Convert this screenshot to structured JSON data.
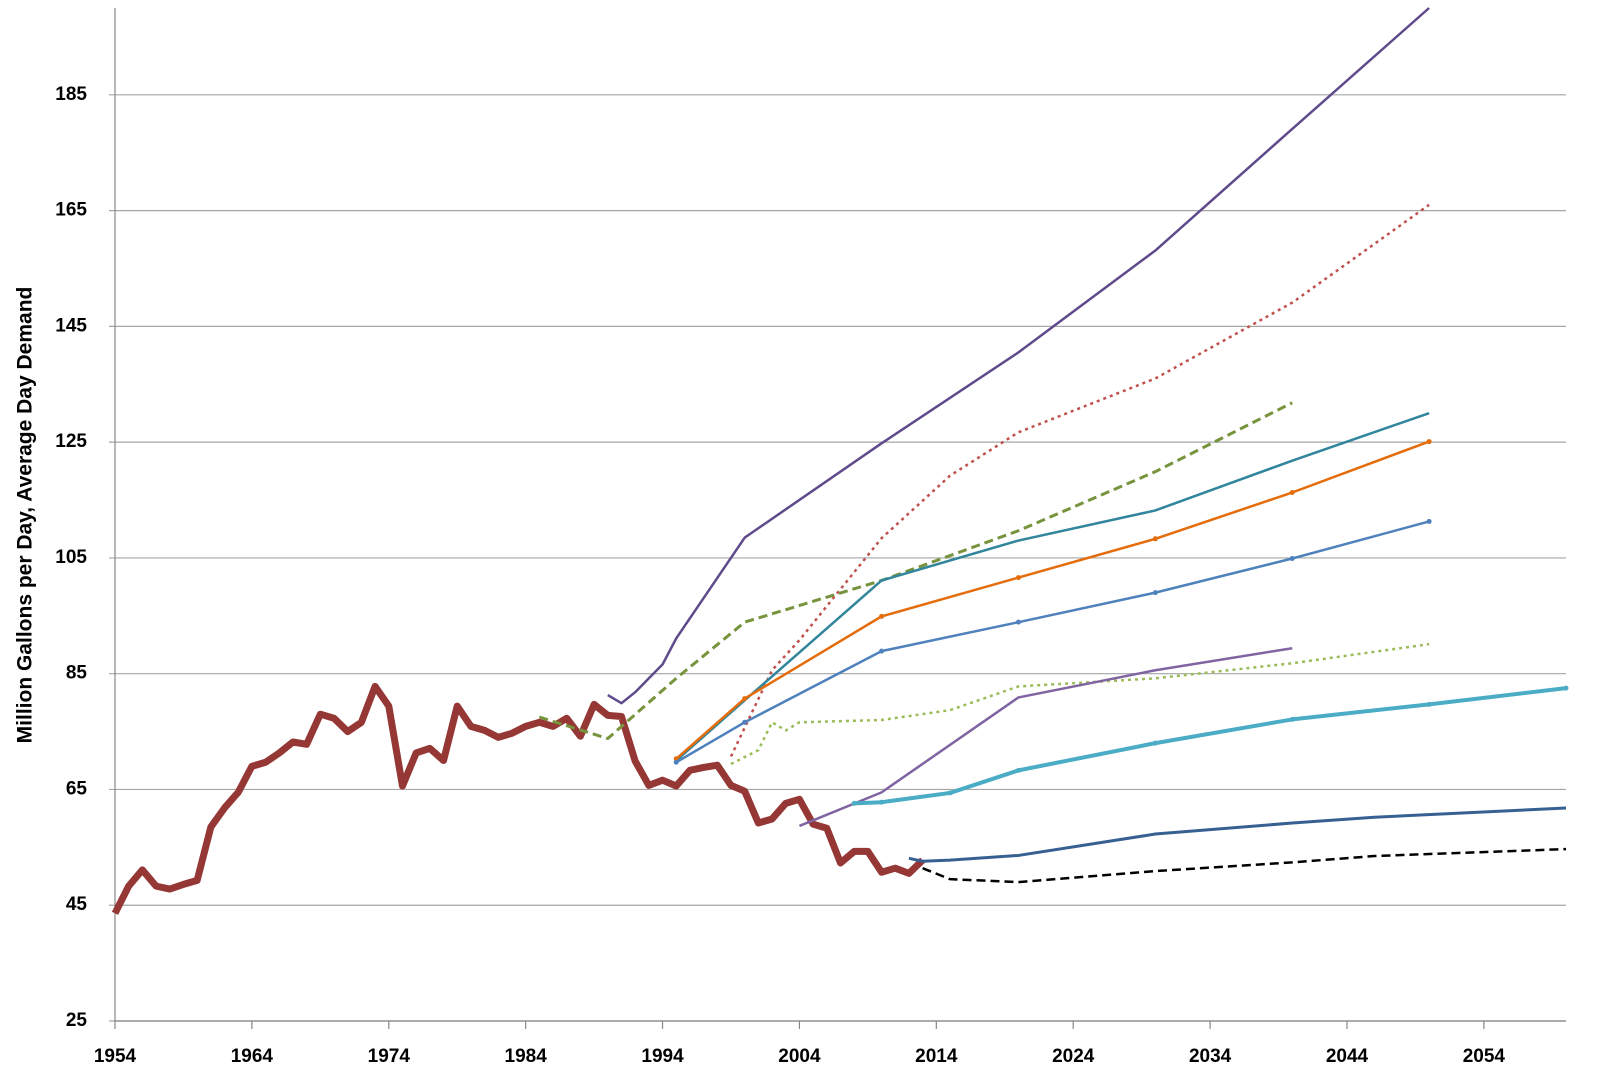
{
  "chart_data": {
    "type": "line",
    "y_label": "Million Gallons per Day, Average Day Demand",
    "xlim": [
      1954,
      2060
    ],
    "xticks": [
      1954,
      1964,
      1974,
      1984,
      1994,
      2004,
      2014,
      2024,
      2034,
      2044,
      2054
    ],
    "ylim": [
      25,
      200
    ],
    "yticks": [
      25,
      45,
      65,
      85,
      105,
      125,
      145,
      165,
      185
    ],
    "grid": true,
    "series": [
      {
        "color": "#953735",
        "width": 7,
        "x": [
          1954,
          1955,
          1956,
          1957,
          1958,
          1959,
          1960,
          1961,
          1962,
          1963,
          1964,
          1965,
          1966,
          1967,
          1968,
          1969,
          1970,
          1971,
          1972,
          1973,
          1974,
          1975,
          1976,
          1977,
          1978,
          1979,
          1980,
          1981,
          1982,
          1983,
          1984,
          1985,
          1986,
          1987,
          1988,
          1989,
          1990,
          1991,
          1992,
          1993,
          1994,
          1995,
          1996,
          1997,
          1998,
          1999,
          2000,
          2001,
          2002,
          2003,
          2004,
          2005,
          2006,
          2007,
          2008,
          2009,
          2010,
          2011,
          2012,
          2013
        ],
        "values": [
          43.6,
          48.3,
          51.1,
          48.3,
          47.8,
          48.6,
          49.3,
          58.5,
          61.8,
          64.5,
          69,
          69.7,
          71.3,
          73.2,
          72.8,
          78,
          77.3,
          75,
          76.6,
          82.8,
          79.4,
          65.6,
          71.3,
          72.1,
          70,
          79.4,
          75.9,
          75.2,
          74,
          74.7,
          75.9,
          76.6,
          75.9,
          77.3,
          74.2,
          79.7,
          77.8,
          77.6,
          69.9,
          65.7,
          66.6,
          65.6,
          68.3,
          68.8,
          69.2,
          65.7,
          64.7,
          59.2,
          59.9,
          62.6,
          63.3,
          59,
          58.3,
          52.3,
          54.3,
          54.3,
          50.7,
          51.4,
          50.5,
          52.8
        ]
      },
      {
        "color": "#5f4a8b",
        "width": 2.5,
        "x": [
          1990,
          1991,
          1992,
          1994,
          1995,
          2000,
          2010,
          2020,
          2030,
          2040,
          2050
        ],
        "values": [
          81.3,
          79.9,
          81.8,
          86.6,
          91.1,
          108.5,
          124.8,
          140.5,
          158.1,
          179.1,
          200
        ]
      },
      {
        "color": "#c0504d",
        "width": 2.5,
        "dash": "dotted",
        "x": [
          1999,
          2002,
          2004,
          2010,
          2015,
          2020,
          2030,
          2040,
          2050
        ],
        "values": [
          70.7,
          85.6,
          90.8,
          108.4,
          119.2,
          126.7,
          136,
          149.1,
          166
        ]
      },
      {
        "color": "#77933c",
        "width": 3,
        "dash": "dashed",
        "x": [
          1985,
          1990,
          1995,
          2000,
          2010,
          2020,
          2030,
          2040
        ],
        "values": [
          77.5,
          73.8,
          84.2,
          93.9,
          101.1,
          109.7,
          119.9,
          131.8
        ]
      },
      {
        "color": "#31859c",
        "width": 2.5,
        "x": [
          1995,
          2000,
          2010,
          2020,
          2030,
          2040,
          2050
        ],
        "values": [
          70,
          80.4,
          101.1,
          108,
          113.2,
          121.8,
          130
        ]
      },
      {
        "color": "#e46c0a",
        "width": 2.5,
        "marker": true,
        "x": [
          1995,
          2000,
          2010,
          2020,
          2030,
          2040,
          2050
        ],
        "values": [
          70.3,
          80.7,
          94.9,
          101.6,
          108.3,
          116.3,
          125.1
        ]
      },
      {
        "color": "#4f81bd",
        "width": 2.5,
        "marker": true,
        "x": [
          1995,
          2000,
          2010,
          2020,
          2030,
          2040,
          2050
        ],
        "values": [
          69.7,
          76.6,
          88.9,
          93.9,
          99,
          104.9,
          111.3
        ]
      },
      {
        "color": "#9bbb59",
        "width": 2.5,
        "dash": "dotted",
        "x": [
          1999,
          2001,
          2002,
          2003,
          2004,
          2010,
          2015,
          2020,
          2030,
          2040,
          2050
        ],
        "values": [
          69.4,
          71.8,
          76.6,
          75.2,
          76.6,
          77,
          78.7,
          82.8,
          84.2,
          86.8,
          90.1
        ]
      },
      {
        "color": "#8064a2",
        "width": 2.5,
        "x": [
          2004,
          2010,
          2020,
          2030,
          2040
        ],
        "values": [
          58.7,
          64.5,
          80.9,
          85.6,
          89.4
        ]
      },
      {
        "color": "#4bacc6",
        "width": 4,
        "marker": true,
        "x": [
          2008,
          2010,
          2015,
          2020,
          2030,
          2040,
          2050,
          2060
        ],
        "values": [
          62.6,
          62.8,
          64.4,
          68.3,
          73,
          77.1,
          79.7,
          82.5
        ]
      },
      {
        "color": "#376092",
        "width": 3,
        "x": [
          2012,
          2013,
          2015,
          2020,
          2030,
          2040,
          2046,
          2060
        ],
        "values": [
          53.1,
          52.6,
          52.8,
          53.6,
          57.3,
          59.2,
          60.2,
          61.8
        ]
      },
      {
        "color": "#000000",
        "width": 2.5,
        "dash": "dashed",
        "x": [
          2013,
          2015,
          2020,
          2030,
          2040,
          2046,
          2060
        ],
        "values": [
          51.4,
          49.5,
          49,
          50.9,
          52.4,
          53.5,
          54.7
        ]
      }
    ]
  }
}
